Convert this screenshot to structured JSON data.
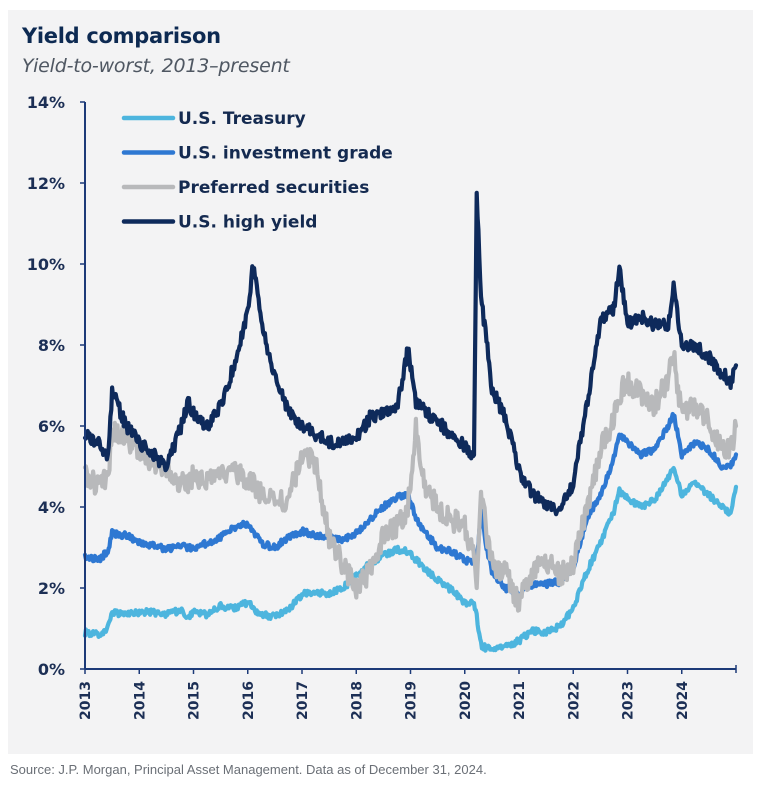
{
  "header": {
    "title": "Yield comparison",
    "subtitle": "Yield-to-worst, 2013–present"
  },
  "footer": {
    "source": "Source: J.P. Morgan, Principal Asset Management. Data as of December 31, 2024."
  },
  "chart_data": {
    "type": "line",
    "title": "Yield comparison",
    "subtitle": "Yield-to-worst, 2013–present",
    "xlabel": "",
    "ylabel": "",
    "xlim": [
      2013,
      2025
    ],
    "ylim": [
      0,
      14
    ],
    "yticks": [
      0,
      2,
      4,
      6,
      8,
      10,
      12,
      14
    ],
    "ytick_labels": [
      "0%",
      "2%",
      "4%",
      "6%",
      "8%",
      "10%",
      "12%",
      "14%"
    ],
    "xticks": [
      2013,
      2014,
      2015,
      2016,
      2017,
      2018,
      2019,
      2020,
      2021,
      2022,
      2023,
      2024
    ],
    "xtick_labels": [
      "2013",
      "2014",
      "2015",
      "2016",
      "2017",
      "2018",
      "2019",
      "2020",
      "2021",
      "2022",
      "2023",
      "2024"
    ],
    "grid": false,
    "legend_position": "top-left",
    "x": [
      2013.0,
      2013.25,
      2013.42,
      2013.5,
      2013.75,
      2014.0,
      2014.25,
      2014.5,
      2014.75,
      2014.9,
      2015.0,
      2015.25,
      2015.5,
      2015.75,
      2016.0,
      2016.1,
      2016.25,
      2016.5,
      2016.75,
      2017.0,
      2017.25,
      2017.5,
      2017.75,
      2018.0,
      2018.25,
      2018.5,
      2018.75,
      2018.95,
      2019.1,
      2019.25,
      2019.5,
      2019.75,
      2020.0,
      2020.17,
      2020.22,
      2020.3,
      2020.4,
      2020.5,
      2020.75,
      2021.0,
      2021.25,
      2021.5,
      2021.75,
      2022.0,
      2022.25,
      2022.5,
      2022.75,
      2022.85,
      2023.0,
      2023.25,
      2023.5,
      2023.75,
      2023.85,
      2024.0,
      2024.25,
      2024.5,
      2024.75,
      2024.9,
      2025.0
    ],
    "series": [
      {
        "name": "U.S. Treasury",
        "color": "#4db5de",
        "values": [
          0.9,
          0.85,
          1.0,
          1.4,
          1.35,
          1.4,
          1.4,
          1.35,
          1.45,
          1.3,
          1.4,
          1.35,
          1.55,
          1.5,
          1.65,
          1.5,
          1.35,
          1.3,
          1.45,
          1.85,
          1.9,
          1.85,
          2.0,
          2.3,
          2.6,
          2.8,
          2.95,
          2.9,
          2.7,
          2.5,
          2.2,
          1.95,
          1.65,
          1.6,
          1.3,
          0.6,
          0.5,
          0.5,
          0.55,
          0.7,
          0.95,
          0.9,
          1.05,
          1.5,
          2.4,
          3.1,
          3.9,
          4.4,
          4.2,
          4.0,
          4.2,
          4.7,
          5.0,
          4.3,
          4.6,
          4.3,
          4.0,
          3.8,
          4.5
        ]
      },
      {
        "name": "U.S. investment grade",
        "color": "#2e78d2",
        "values": [
          2.75,
          2.7,
          2.9,
          3.35,
          3.3,
          3.15,
          3.05,
          2.95,
          3.05,
          3.0,
          3.0,
          3.1,
          3.25,
          3.5,
          3.6,
          3.4,
          3.1,
          3.0,
          3.25,
          3.4,
          3.3,
          3.25,
          3.2,
          3.35,
          3.7,
          4.0,
          4.25,
          4.3,
          3.75,
          3.4,
          3.0,
          2.9,
          2.7,
          2.6,
          2.6,
          3.9,
          3.0,
          2.4,
          2.0,
          1.85,
          2.1,
          2.1,
          2.15,
          2.5,
          3.7,
          4.3,
          5.2,
          5.8,
          5.6,
          5.3,
          5.4,
          6.0,
          6.3,
          5.3,
          5.6,
          5.4,
          5.0,
          5.0,
          5.3
        ]
      },
      {
        "name": "Preferred securities",
        "color": "#b8b9bb",
        "values": [
          4.8,
          4.5,
          4.7,
          5.9,
          5.7,
          5.4,
          5.0,
          4.9,
          4.6,
          4.5,
          4.8,
          4.6,
          4.8,
          4.9,
          4.7,
          4.6,
          4.3,
          4.1,
          4.2,
          5.3,
          5.1,
          3.2,
          2.6,
          2.0,
          2.4,
          3.3,
          3.5,
          4.0,
          5.9,
          4.6,
          4.0,
          3.7,
          3.5,
          2.8,
          1.9,
          4.4,
          3.4,
          2.6,
          2.4,
          1.6,
          2.5,
          2.7,
          2.3,
          2.6,
          4.0,
          5.4,
          6.2,
          6.8,
          7.1,
          6.8,
          6.5,
          7.2,
          7.7,
          6.3,
          6.5,
          6.1,
          5.4,
          5.4,
          6.0
        ]
      },
      {
        "name": "U.S. high yield",
        "color": "#0e2a5b",
        "values": [
          5.8,
          5.6,
          5.2,
          6.9,
          6.0,
          5.6,
          5.3,
          5.0,
          5.9,
          6.6,
          6.3,
          6.0,
          6.5,
          7.5,
          8.8,
          10.0,
          8.5,
          7.2,
          6.4,
          6.0,
          5.8,
          5.6,
          5.6,
          5.7,
          6.2,
          6.3,
          6.4,
          7.9,
          6.6,
          6.4,
          6.1,
          5.8,
          5.5,
          5.2,
          11.7,
          9.2,
          8.1,
          6.9,
          6.2,
          4.9,
          4.3,
          4.1,
          3.9,
          4.6,
          6.5,
          8.6,
          8.9,
          9.9,
          8.5,
          8.7,
          8.5,
          8.5,
          9.4,
          8.0,
          8.0,
          7.7,
          7.3,
          7.1,
          7.5
        ]
      }
    ]
  },
  "legend": {
    "items": [
      {
        "label": "U.S. Treasury",
        "color": "#4db5de"
      },
      {
        "label": "U.S. investment grade",
        "color": "#2e78d2"
      },
      {
        "label": "Preferred securities",
        "color": "#b8b9bb"
      },
      {
        "label": "U.S. high yield",
        "color": "#0e2a5b"
      }
    ]
  }
}
